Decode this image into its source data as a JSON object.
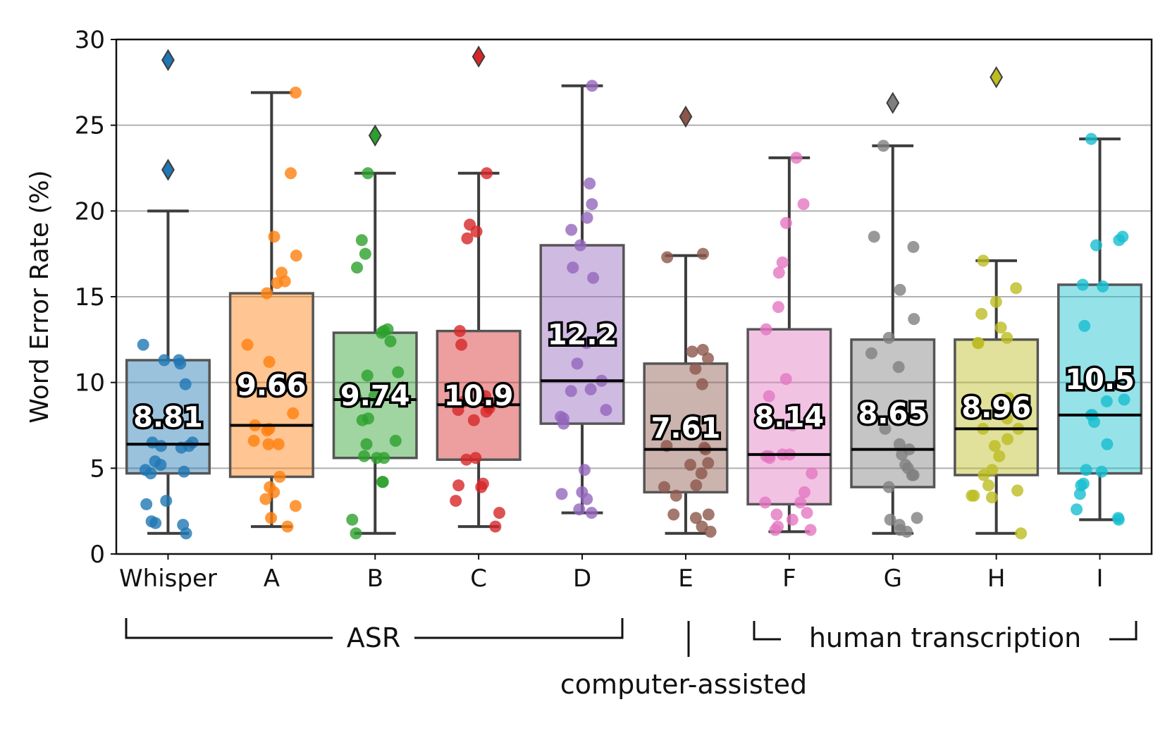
{
  "chart_data": {
    "type": "box",
    "ylabel": "Word Error Rate (%)",
    "xlabel": "",
    "ylim": [
      0,
      30
    ],
    "yticks": [
      0,
      5,
      10,
      15,
      20,
      25,
      30
    ],
    "grid": "horizontal",
    "categories": [
      "Whisper",
      "A",
      "B",
      "C",
      "D",
      "E",
      "F",
      "G",
      "H",
      "I"
    ],
    "colors": [
      "#1f77b4",
      "#ff7f0e",
      "#2ca02c",
      "#d62728",
      "#9467bd",
      "#8c564b",
      "#e377c2",
      "#7f7f7f",
      "#bcbd22",
      "#17becf"
    ],
    "boxes": [
      {
        "name": "Whisper",
        "q1": 4.7,
        "median": 6.4,
        "q3": 11.3,
        "whisker_low": 1.2,
        "whisker_high": 20.0,
        "mean_label": "8.81",
        "outliers": [
          28.8,
          22.4
        ]
      },
      {
        "name": "A",
        "q1": 4.5,
        "median": 7.5,
        "q3": 15.2,
        "whisker_low": 1.6,
        "whisker_high": 26.9,
        "mean_label": "9.66",
        "outliers": []
      },
      {
        "name": "B",
        "q1": 5.6,
        "median": 9.0,
        "q3": 12.9,
        "whisker_low": 1.2,
        "whisker_high": 22.2,
        "mean_label": "9.74",
        "outliers": [
          24.4
        ]
      },
      {
        "name": "C",
        "q1": 5.5,
        "median": 8.7,
        "q3": 13.0,
        "whisker_low": 1.6,
        "whisker_high": 22.2,
        "mean_label": "10.9",
        "outliers": [
          29.0
        ]
      },
      {
        "name": "D",
        "q1": 7.6,
        "median": 10.1,
        "q3": 18.0,
        "whisker_low": 2.4,
        "whisker_high": 27.3,
        "mean_label": "12.2",
        "outliers": []
      },
      {
        "name": "E",
        "q1": 3.6,
        "median": 6.1,
        "q3": 11.1,
        "whisker_low": 1.2,
        "whisker_high": 17.4,
        "mean_label": "7.61",
        "outliers": [
          25.5
        ]
      },
      {
        "name": "F",
        "q1": 2.9,
        "median": 5.8,
        "q3": 13.1,
        "whisker_low": 1.3,
        "whisker_high": 23.1,
        "mean_label": "8.14",
        "outliers": []
      },
      {
        "name": "G",
        "q1": 3.9,
        "median": 6.1,
        "q3": 12.5,
        "whisker_low": 1.2,
        "whisker_high": 23.8,
        "mean_label": "8.65",
        "outliers": [
          26.3
        ]
      },
      {
        "name": "H",
        "q1": 4.6,
        "median": 7.3,
        "q3": 12.5,
        "whisker_low": 1.2,
        "whisker_high": 17.1,
        "mean_label": "8.96",
        "outliers": [
          27.8
        ]
      },
      {
        "name": "I",
        "q1": 4.7,
        "median": 8.1,
        "q3": 15.7,
        "whisker_low": 2.0,
        "whisker_high": 24.2,
        "mean_label": "10.5",
        "outliers": []
      }
    ],
    "points": [
      [
        12.2,
        11.3,
        11.1,
        11.3,
        9.9,
        6.5,
        6.5,
        6.3,
        6.3,
        6.2,
        5.4,
        5.2,
        4.9,
        4.8,
        4.7,
        3.1,
        2.9,
        1.9,
        1.8,
        1.7,
        1.2
      ],
      [
        26.9,
        22.2,
        18.5,
        17.4,
        16.4,
        15.9,
        15.8,
        15.2,
        12.2,
        11.2,
        8.2,
        7.5,
        7.2,
        7.3,
        6.6,
        6.4,
        6.4,
        4.5,
        3.9,
        3.6,
        3.2,
        2.8,
        2.1,
        1.6
      ],
      [
        22.2,
        18.3,
        17.5,
        16.7,
        13.1,
        13.0,
        12.9,
        12.4,
        10.6,
        10.4,
        9.2,
        9.1,
        7.9,
        7.8,
        6.6,
        6.4,
        5.7,
        5.6,
        5.6,
        4.2,
        4.2,
        2.0,
        1.2
      ],
      [
        22.2,
        19.2,
        18.8,
        18.4,
        13.0,
        12.2,
        9.2,
        9.0,
        8.9,
        8.7,
        8.5,
        8.4,
        8.3,
        7.8,
        5.6,
        5.5,
        4.1,
        4.0,
        3.9,
        3.1,
        2.4,
        1.6
      ],
      [
        27.3,
        21.6,
        20.4,
        19.6,
        18.9,
        18.0,
        16.7,
        16.1,
        12.3,
        11.1,
        10.1,
        9.6,
        9.5,
        8.4,
        8.0,
        7.9,
        7.6,
        4.9,
        3.6,
        3.5,
        3.2,
        2.6,
        2.4
      ],
      [
        17.5,
        17.3,
        11.8,
        11.9,
        11.4,
        10.8,
        9.9,
        6.3,
        6.2,
        6.1,
        5.3,
        5.2,
        4.7,
        4.0,
        3.9,
        3.4,
        2.3,
        2.3,
        2.1,
        1.6,
        1.3
      ],
      [
        23.1,
        20.4,
        19.3,
        17.0,
        16.4,
        14.4,
        13.1,
        10.2,
        9.2,
        7.5,
        5.8,
        5.8,
        5.7,
        5.7,
        5.6,
        4.7,
        3.6,
        3.0,
        3.0,
        2.4,
        2.3,
        2.0,
        1.6,
        1.4,
        1.4
      ],
      [
        23.8,
        18.5,
        17.9,
        15.4,
        13.7,
        12.6,
        11.7,
        10.9,
        7.3,
        6.4,
        6.1,
        5.8,
        5.2,
        5.0,
        4.6,
        4.6,
        3.9,
        2.1,
        2.0,
        1.7,
        1.4,
        1.3
      ],
      [
        17.1,
        15.5,
        14.7,
        14.0,
        13.2,
        12.6,
        12.3,
        12.3,
        9.1,
        8.2,
        7.9,
        7.3,
        7.3,
        6.7,
        6.3,
        5.7,
        4.9,
        4.6,
        4.0,
        3.7,
        3.4,
        3.4,
        3.3,
        1.2
      ],
      [
        24.2,
        18.5,
        18.3,
        18.0,
        15.7,
        15.6,
        13.3,
        9.0,
        8.9,
        8.1,
        8.1,
        7.7,
        6.4,
        4.9,
        4.8,
        4.1,
        4.0,
        3.5,
        2.6,
        2.1,
        2.0
      ]
    ],
    "groups": {
      "asr": "ASR",
      "computer_assisted": "computer-assisted",
      "human": "human transcription"
    }
  }
}
